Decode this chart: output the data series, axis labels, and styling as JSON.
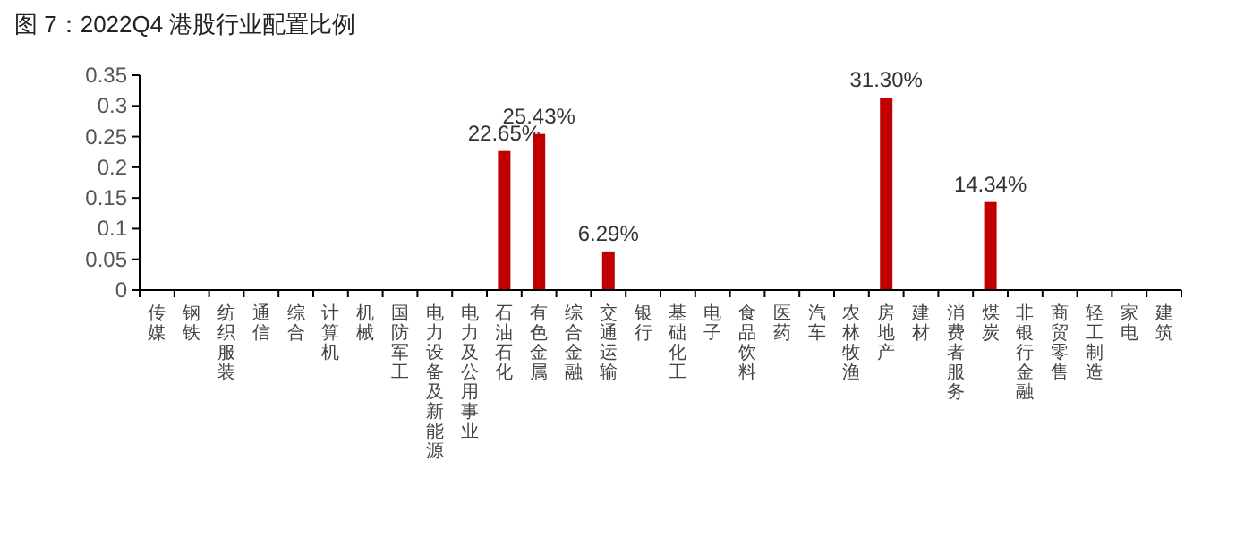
{
  "chart_data": {
    "type": "bar",
    "title": "图 7：2022Q4 港股行业配置比例",
    "categories": [
      "传媒",
      "钢铁",
      "纺织服装",
      "通信",
      "综合",
      "计算机",
      "机械",
      "国防军工",
      "电力设备及新能源",
      "电力及公用事业",
      "石油石化",
      "有色金属",
      "综合金融",
      "交通运输",
      "银行",
      "基础化工",
      "电子",
      "食品饮料",
      "医药",
      "汽车",
      "农林牧渔",
      "房地产",
      "建材",
      "消费者服务",
      "煤炭",
      "非银行金融",
      "商贸零售",
      "轻工制造",
      "家电",
      "建筑"
    ],
    "values": [
      0,
      0,
      0,
      0,
      0,
      0,
      0,
      0,
      0,
      0,
      0.2265,
      0.2543,
      0,
      0.0629,
      0,
      0,
      0,
      0,
      0,
      0,
      0,
      0.313,
      0,
      0,
      0.1434,
      0,
      0,
      0,
      0,
      0
    ],
    "value_labels": [
      null,
      null,
      null,
      null,
      null,
      null,
      null,
      null,
      null,
      null,
      "22.65%",
      "25.43%",
      null,
      "6.29%",
      null,
      null,
      null,
      null,
      null,
      null,
      null,
      "31.30%",
      null,
      null,
      "14.34%",
      null,
      null,
      null,
      null,
      null
    ],
    "color": "#c00000",
    "ylim": [
      0,
      0.35
    ],
    "yticks": [
      0,
      0.05,
      0.1,
      0.15,
      0.2,
      0.25,
      0.3,
      0.35
    ],
    "grid": false
  }
}
